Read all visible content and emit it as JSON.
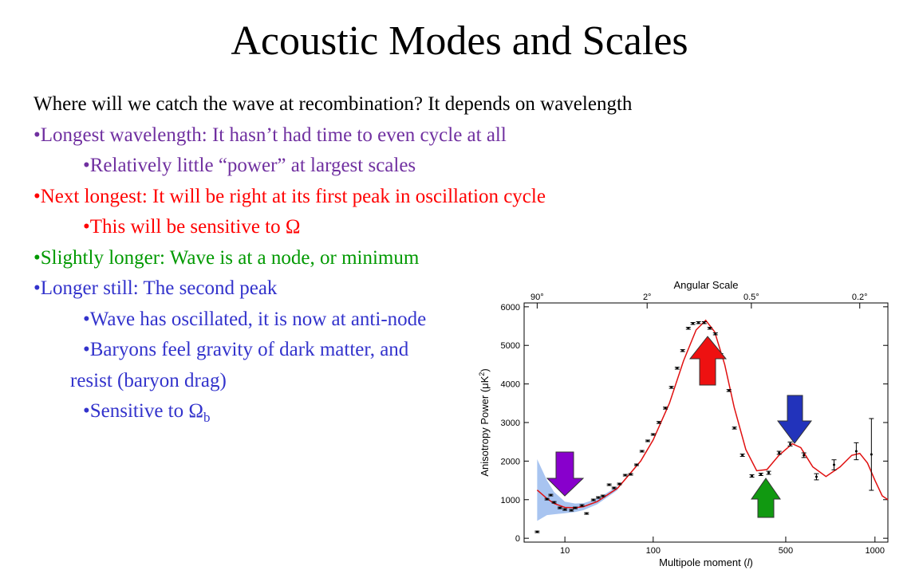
{
  "title": "Acoustic Modes and Scales",
  "intro": {
    "text": "Where will we catch the wave at recombination?  It depends on wavelength",
    "color": "#000000"
  },
  "bullets": [
    {
      "text": "•Longest wavelength:  It hasn’t had time to even cycle at all",
      "color": "#7030a0",
      "sub": [
        {
          "text": "•Relatively little “power” at largest scales"
        }
      ]
    },
    {
      "text": "•Next longest:  It will be right at its first peak in oscillation cycle",
      "color": "#ff0000",
      "sub": [
        {
          "text": "•This will be sensitive to Ω"
        }
      ]
    },
    {
      "text": "•Slightly longer:  Wave is at a node, or minimum",
      "color": "#009900",
      "sub": []
    },
    {
      "text": "•Longer still:  The second peak",
      "color": "#3333cc",
      "sub": [
        {
          "text": "•Wave has oscillated, it is now at anti-node"
        },
        {
          "text": "•Baryons feel gravity of dark matter, and",
          "continuation": "resist (baryon drag)"
        },
        {
          "text": "•Sensitive to Ω",
          "subscript": "b"
        }
      ]
    }
  ],
  "chart_data": {
    "type": "line",
    "x2label": "Angular Scale",
    "xlabel": {
      "text": "Multipole moment (",
      "italic": "l",
      "end": ")"
    },
    "ylabel": {
      "text": "Anisotropy Power (μK",
      "sup": "2",
      "end": ")"
    },
    "x_scale_power": 0.4,
    "xlim": [
      0.5,
      1090
    ],
    "xticks": [
      10,
      100,
      500,
      1000
    ],
    "x2ticks": [
      {
        "value": 2,
        "label": "90°"
      },
      {
        "value": 90,
        "label": "2°"
      },
      {
        "value": 360,
        "label": "0.5°"
      },
      {
        "value": 900,
        "label": "0.2°"
      }
    ],
    "ylim": [
      -100,
      6100
    ],
    "yticks": [
      0,
      1000,
      2000,
      3000,
      4000,
      5000,
      6000
    ],
    "series": [
      {
        "mark": "band",
        "color": "#a8c4f0",
        "x": [
          2,
          4,
          6,
          10,
          15,
          20,
          30,
          50
        ],
        "lower": [
          450,
          600,
          620,
          650,
          680,
          730,
          880,
          1250
        ],
        "upper": [
          2050,
          1500,
          1200,
          950,
          900,
          910,
          1020,
          1350
        ]
      },
      {
        "mark": "line",
        "color": "#e01010",
        "x": [
          2,
          4,
          6,
          10,
          15,
          20,
          30,
          50,
          80,
          100,
          130,
          160,
          190,
          215,
          240,
          270,
          300,
          340,
          380,
          420,
          470,
          530,
          570,
          630,
          700,
          780,
          850,
          900,
          950,
          1000,
          1050,
          1090
        ],
        "values": [
          1250,
          1030,
          900,
          800,
          790,
          820,
          950,
          1300,
          2000,
          2550,
          3500,
          4600,
          5400,
          5650,
          5350,
          4500,
          3400,
          2300,
          1750,
          1780,
          2150,
          2450,
          2350,
          1850,
          1600,
          1850,
          2150,
          2200,
          1950,
          1500,
          1100,
          1000
        ]
      },
      {
        "mark": "errorbar",
        "color": "#000000",
        "x": [
          2,
          4,
          5,
          6,
          8,
          10,
          13,
          15,
          19,
          22,
          27,
          31,
          35,
          41,
          46,
          52,
          59,
          66,
          74,
          82,
          91,
          100,
          110,
          122,
          134,
          146,
          158,
          171,
          182,
          196,
          211,
          226,
          242,
          258,
          283,
          301,
          328,
          362,
          396,
          427,
          471,
          520,
          585,
          649,
          745,
          878,
          976
        ],
        "values": [
          166,
          1014,
          1118,
          931,
          787,
          745,
          725,
          787,
          849,
          642,
          994,
          1056,
          1097,
          1387,
          1304,
          1408,
          1635,
          1656,
          1904,
          2256,
          2525,
          2691,
          3002,
          3374,
          3912,
          4409,
          4865,
          5444,
          5568,
          5589,
          5589,
          5444,
          5299,
          4761,
          3830,
          2857,
          2153,
          1615,
          1656,
          1697,
          2215,
          2443,
          2153,
          1594,
          1904,
          2256,
          2173
        ],
        "errors": [
          20,
          20,
          20,
          20,
          20,
          20,
          20,
          20,
          20,
          20,
          20,
          20,
          20,
          20,
          20,
          20,
          20,
          20,
          20,
          20,
          20,
          20,
          25,
          25,
          25,
          25,
          25,
          25,
          25,
          25,
          25,
          25,
          25,
          25,
          25,
          25,
          30,
          30,
          30,
          40,
          40,
          50,
          60,
          80,
          130,
          220,
          930
        ]
      }
    ]
  }
}
